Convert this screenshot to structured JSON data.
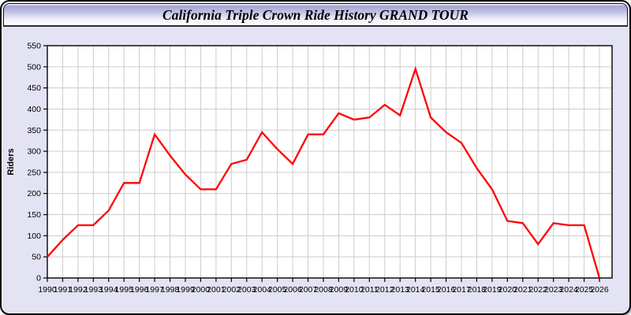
{
  "window": {
    "title": "California Triple Crown Ride History GRAND TOUR"
  },
  "colors": {
    "series_red": "#ff0000",
    "frame_background": "#e3e3f3",
    "plot_background": "#ffffff",
    "grid": "#cccccc",
    "axis": "#000000",
    "titlebar_gradient_top": "#a4a5d6",
    "titlebar_gradient_bottom": "#ffffff"
  },
  "chart_data": {
    "type": "line",
    "title": "California Triple Crown Ride History GRAND TOUR",
    "xlabel": "",
    "ylabel": "Riders",
    "ylim": [
      0,
      550
    ],
    "ytick_step": 50,
    "grid": true,
    "legend": false,
    "x": [
      1990,
      1991,
      1992,
      1993,
      1994,
      1995,
      1996,
      1997,
      1998,
      1999,
      2000,
      2001,
      2002,
      2003,
      2004,
      2005,
      2006,
      2007,
      2008,
      2009,
      2010,
      2011,
      2012,
      2013,
      2014,
      2015,
      2016,
      2017,
      2018,
      2019,
      2020,
      2021,
      2022,
      2023,
      2024,
      2025,
      2026
    ],
    "series": [
      {
        "name": "Riders",
        "color": "#ff0000",
        "values": [
          50,
          90,
          125,
          125,
          160,
          225,
          225,
          340,
          290,
          245,
          210,
          210,
          270,
          280,
          345,
          305,
          270,
          340,
          340,
          390,
          375,
          380,
          410,
          385,
          495,
          380,
          345,
          320,
          260,
          210,
          135,
          130,
          80,
          130,
          125,
          125,
          0
        ]
      }
    ]
  }
}
